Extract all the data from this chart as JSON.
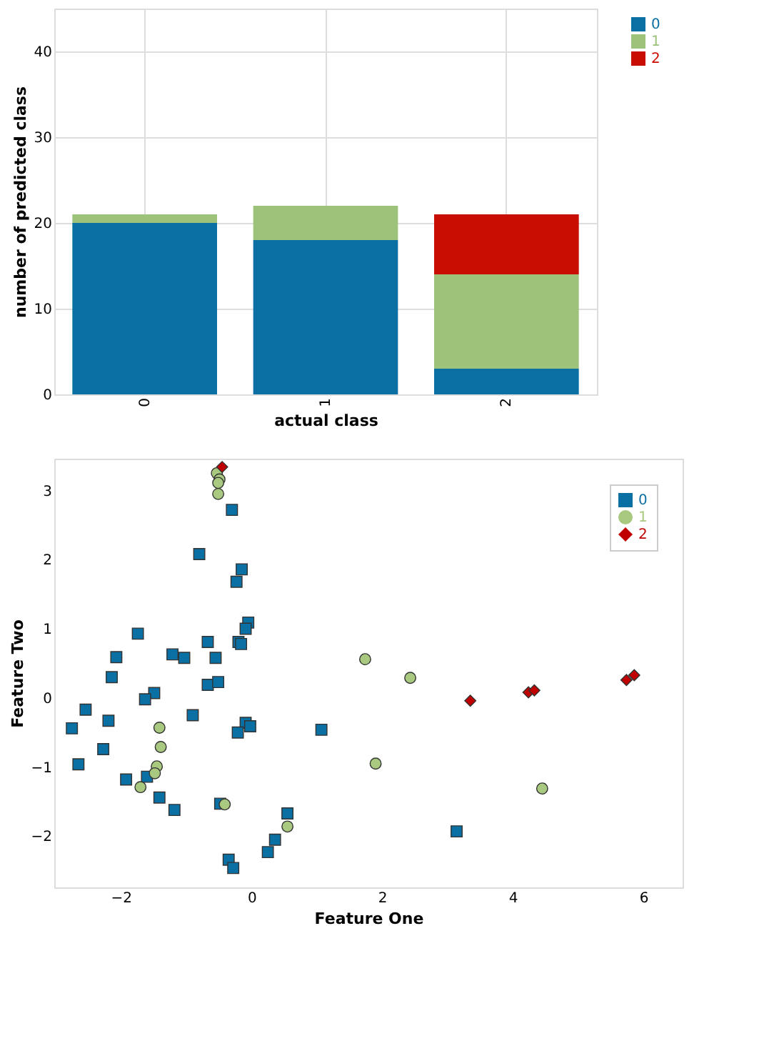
{
  "chart_data": [
    {
      "type": "bar",
      "stacked": true,
      "xlabel": "actual class",
      "ylabel": "number of predicted class",
      "categories": [
        "0",
        "1",
        "2"
      ],
      "ylim": [
        0,
        45
      ],
      "yticks": [
        0,
        10,
        20,
        30,
        40
      ],
      "grid": true,
      "legend": "right",
      "series": [
        {
          "name": "0",
          "color": "#0a6fa3",
          "values": [
            20,
            18,
            3
          ]
        },
        {
          "name": "1",
          "color": "#9dc27a",
          "values": [
            1,
            4,
            11
          ]
        },
        {
          "name": "2",
          "color": "#c90d00",
          "values": [
            0,
            0,
            7
          ]
        }
      ]
    },
    {
      "type": "scatter",
      "xlabel": "Feature One",
      "ylabel": "Feature Two",
      "xlim": [
        -3.02,
        6.6
      ],
      "ylim": [
        -2.74,
        3.46
      ],
      "xticks": [
        -2,
        0,
        2,
        4,
        6
      ],
      "yticks": [
        -2,
        -1,
        0,
        1,
        2,
        3
      ],
      "grid": false,
      "legend": "top right",
      "series": [
        {
          "name": "0",
          "color": "#0a6fa3",
          "marker": "square",
          "x": [
            -0.3,
            -0.8,
            -0.15,
            -0.23,
            -0.05,
            -0.09,
            -1.74,
            -0.2,
            -0.16,
            -0.67,
            -2.07,
            -1.21,
            -1.03,
            -0.55,
            -2.14,
            -0.67,
            -0.51,
            -1.49,
            -1.63,
            -2.54,
            -2.19,
            -0.9,
            -2.75,
            -0.09,
            -0.02,
            -0.21,
            1.07,
            -2.27,
            -2.65,
            -1.92,
            -1.6,
            -1.41,
            -1.18,
            -0.48,
            0.55,
            0.36,
            0.25,
            -0.35,
            -0.28,
            3.14
          ],
          "values": [
            2.72,
            2.08,
            1.86,
            1.68,
            1.09,
            1.0,
            0.93,
            0.81,
            0.78,
            0.81,
            0.59,
            0.63,
            0.58,
            0.58,
            0.3,
            0.19,
            0.23,
            0.07,
            -0.02,
            -0.17,
            -0.33,
            -0.25,
            -0.44,
            -0.36,
            -0.41,
            -0.5,
            -0.46,
            -0.74,
            -0.96,
            -1.18,
            -1.14,
            -1.44,
            -1.62,
            -1.53,
            -1.67,
            -2.05,
            -2.23,
            -2.34,
            -2.46,
            -1.93
          ]
        },
        {
          "name": "1",
          "color": "#a8c97f",
          "marker": "circle",
          "x": [
            -0.53,
            -0.49,
            -0.51,
            -0.51,
            -1.41,
            -1.39,
            -1.45,
            -1.48,
            -1.7,
            -0.41,
            0.55,
            1.74,
            2.43,
            1.9,
            4.45
          ],
          "values": [
            3.25,
            3.16,
            3.11,
            2.95,
            -0.43,
            -0.71,
            -0.99,
            -1.09,
            -1.29,
            -1.54,
            -1.86,
            0.56,
            0.29,
            -0.95,
            -1.31
          ]
        },
        {
          "name": "2",
          "color": "#c00000",
          "marker": "diamond",
          "x": [
            -0.45,
            3.35,
            4.24,
            4.33,
            5.74,
            5.86
          ],
          "values": [
            3.34,
            -0.04,
            0.08,
            0.11,
            0.26,
            0.33
          ]
        }
      ]
    }
  ]
}
